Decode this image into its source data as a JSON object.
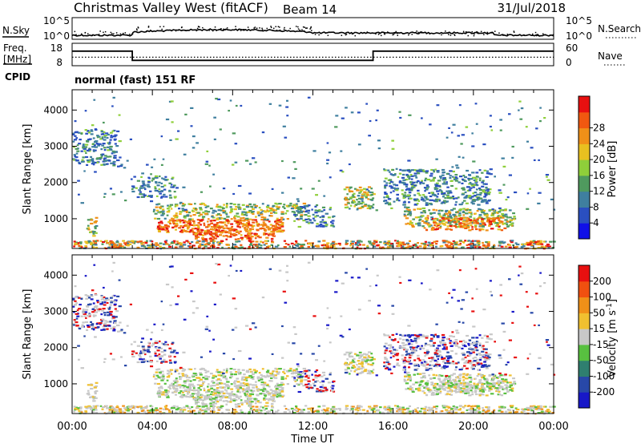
{
  "header": {
    "title": "Christmas Valley West (fitACF)",
    "beam": "Beam 14",
    "date": "31/Jul/2018"
  },
  "noise_panel": {
    "left_label": "N.Sky",
    "left_ticks": [
      "10^5",
      "10^0"
    ],
    "right_label": "N.Search",
    "right_ticks": [
      "10^5",
      "10^0"
    ]
  },
  "freq_panel": {
    "left_label_1": "Freq.",
    "left_label_2": "[MHz]",
    "left_ticks": [
      "18",
      "8"
    ],
    "right_label": "Nave",
    "right_ticks": [
      "60",
      "0"
    ]
  },
  "cpid": {
    "label": "CPID",
    "text": "normal (fast) 151 RF"
  },
  "chart_data": [
    {
      "type": "line",
      "name": "noise",
      "series": [
        {
          "name": "N.Sky"
        },
        {
          "name": "N.Search"
        }
      ]
    },
    {
      "type": "line",
      "name": "frequency",
      "series": [
        {
          "name": "Freq.",
          "points": [
            [
              0,
              14.5
            ],
            [
              3.0,
              14.5
            ],
            [
              3.0,
              10.4
            ],
            [
              15.0,
              10.4
            ],
            [
              15.0,
              14.5
            ],
            [
              24,
              14.5
            ]
          ]
        },
        {
          "name": "Nave",
          "points": [
            [
              0,
              11.8
            ],
            [
              24,
              11.8
            ]
          ]
        }
      ]
    },
    {
      "type": "heatmap",
      "name": "power",
      "xlabel": "Time UT",
      "ylabel": "Slant Range [km]",
      "xlim": [
        0,
        24
      ],
      "ylim": [
        180,
        4560
      ],
      "xticks": [
        "00:00",
        "04:00",
        "08:00",
        "12:00",
        "16:00",
        "20:00",
        "00:00"
      ],
      "yticks": [
        1000,
        2000,
        3000,
        4000
      ],
      "colorbar": {
        "label": "Power [dB]",
        "ticks": [
          4,
          8,
          12,
          16,
          20,
          24,
          28
        ],
        "colors": [
          "#1010e8",
          "#2a4fc0",
          "#3f7f9f",
          "#4f9a5e",
          "#8fcf3a",
          "#e8c020",
          "#f09018",
          "#f05810",
          "#e81010"
        ]
      }
    },
    {
      "type": "heatmap",
      "name": "velocity",
      "xlabel": "Time UT",
      "ylabel": "Slant Range [km]",
      "xlim": [
        0,
        24
      ],
      "ylim": [
        180,
        4560
      ],
      "xticks": [
        "00:00",
        "04:00",
        "08:00",
        "12:00",
        "16:00",
        "20:00",
        "00:00"
      ],
      "yticks": [
        1000,
        2000,
        3000,
        4000
      ],
      "colorbar": {
        "label": "Velocity [m s",
        "label_exp": "-1",
        "label_end": "]",
        "ticks": [
          200,
          100,
          50,
          15,
          -15,
          -50,
          -100,
          -200
        ],
        "colors": [
          "#1818c8",
          "#2848a8",
          "#2f7f6f",
          "#58c040",
          "#c8c8c8",
          "#f0c030",
          "#f09018",
          "#f05010",
          "#e81010"
        ]
      }
    }
  ]
}
